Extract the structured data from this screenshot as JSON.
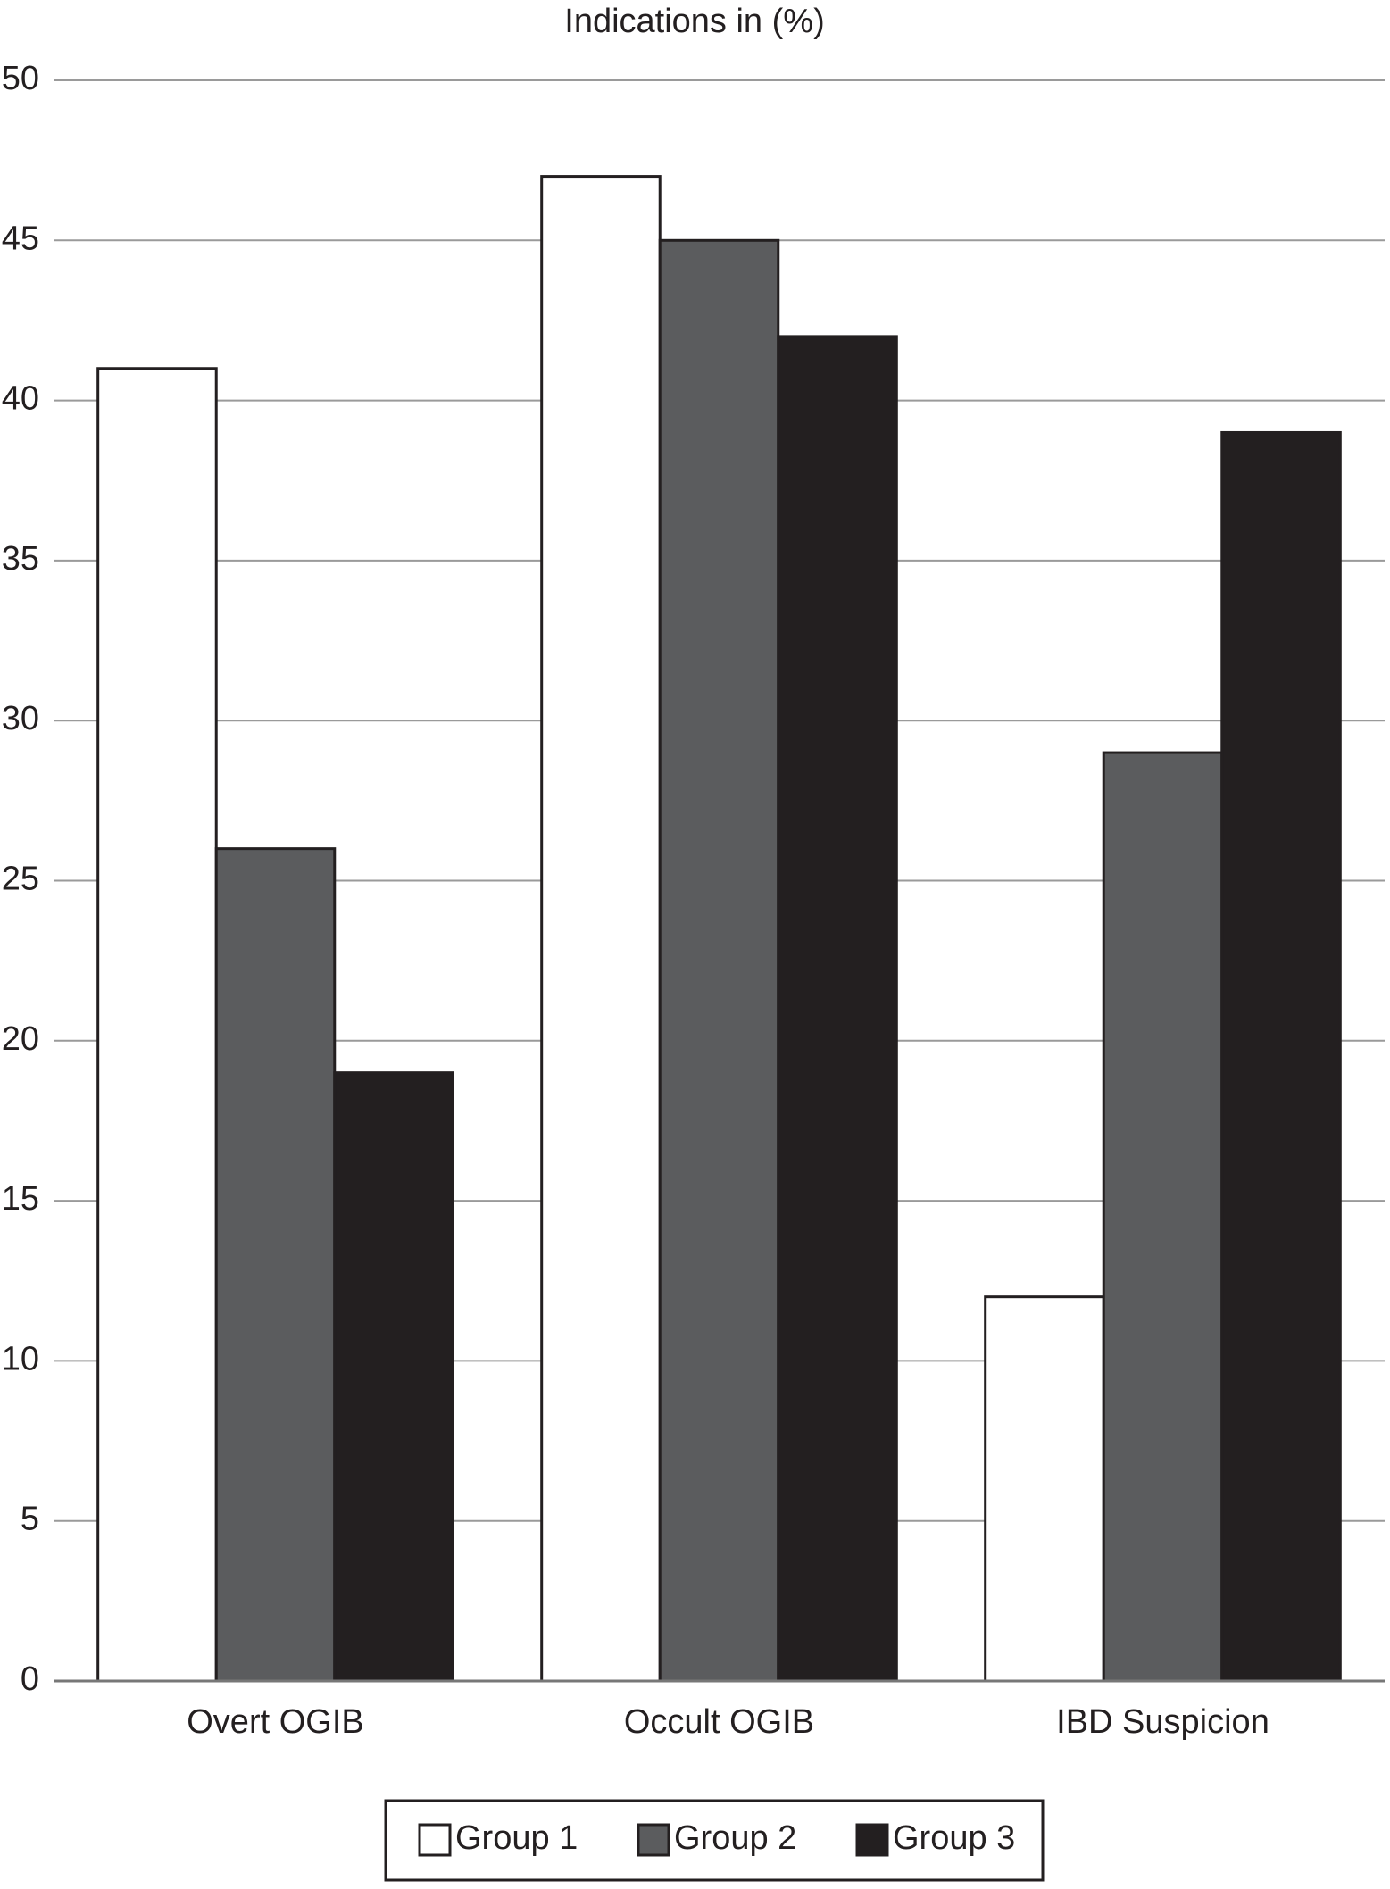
{
  "chart_data": {
    "type": "bar",
    "title": "Indications in (%)",
    "categories": [
      "Overt OGIB",
      "Occult OGIB",
      "IBD Suspicion"
    ],
    "series": [
      {
        "name": "Group 1",
        "color": "#ffffff",
        "values": [
          41,
          47,
          12
        ]
      },
      {
        "name": "Group 2",
        "color": "#5b5c5e",
        "values": [
          26,
          45,
          29
        ]
      },
      {
        "name": "Group 3",
        "color": "#231f20",
        "values": [
          19,
          42,
          39
        ]
      }
    ],
    "ylim": [
      0,
      50
    ],
    "yticks": [
      0,
      5,
      10,
      15,
      20,
      25,
      30,
      35,
      40,
      45,
      50
    ],
    "grid": true,
    "legend": "bottom"
  }
}
